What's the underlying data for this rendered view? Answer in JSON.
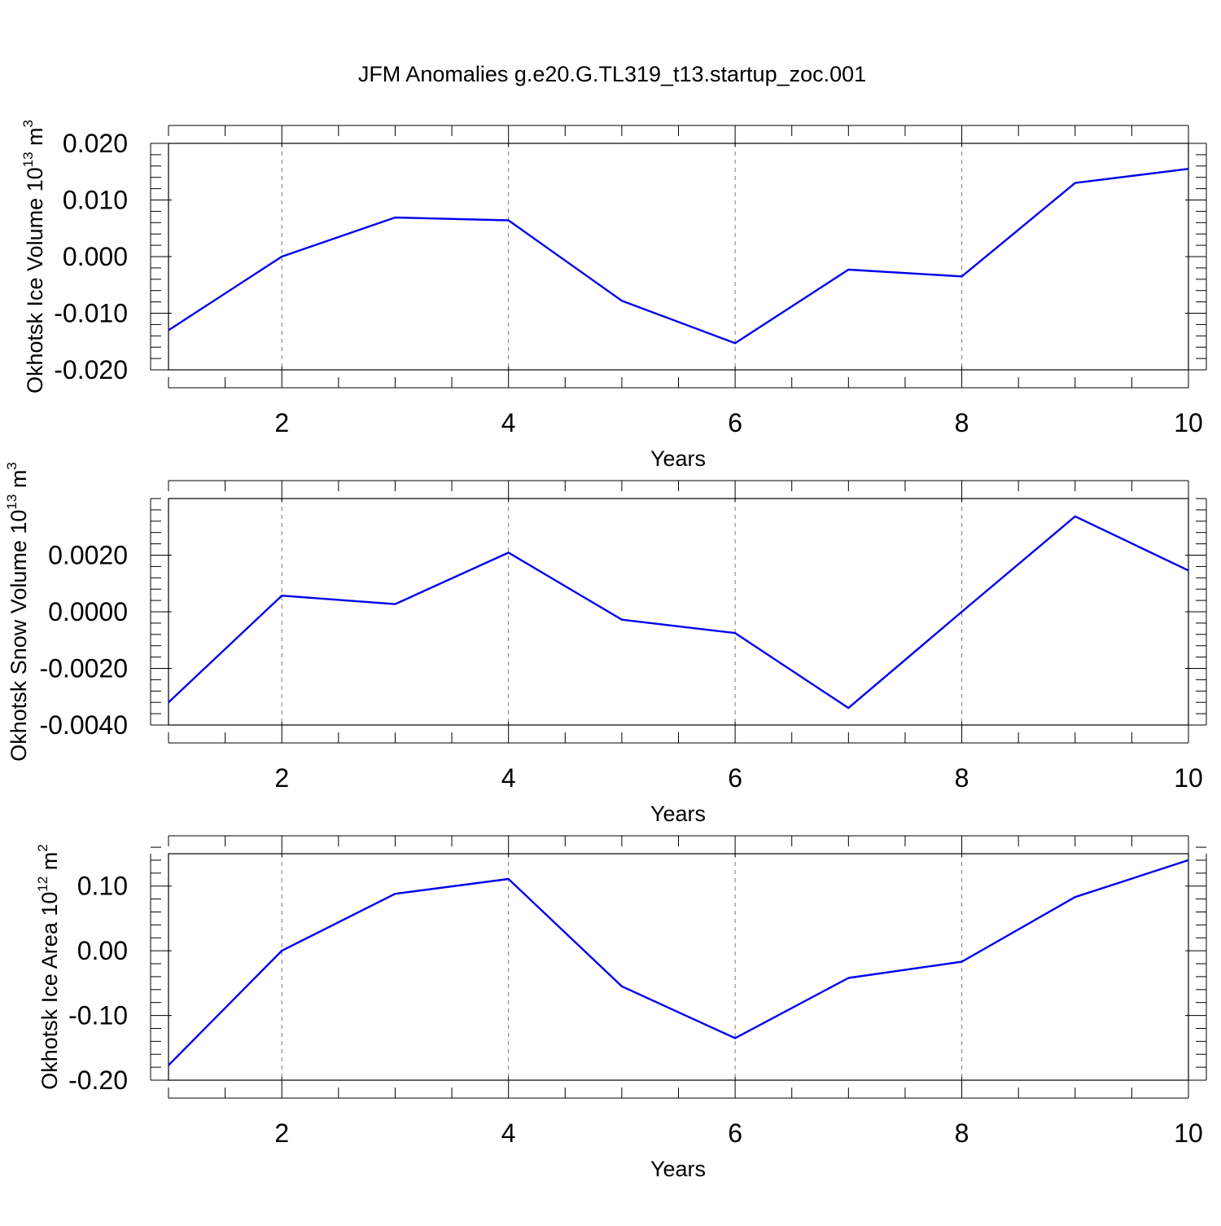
{
  "title": "JFM Anomalies g.e20.G.TL319_t13.startup_zoc.001",
  "colors": {
    "line": "#0000ee",
    "axis": "#000000",
    "grid": "#777777",
    "background": "#ffffff"
  },
  "chart_data": [
    {
      "type": "line",
      "title": "",
      "xlabel": "Years",
      "ylabel": {
        "text": "Okhotsk Ice Volume 10",
        "exponent": "13",
        "unit": "m",
        "unit_exponent": "3"
      },
      "xlim": [
        1,
        10
      ],
      "ylim": [
        -0.02,
        0.02
      ],
      "xticks": [
        2,
        4,
        6,
        8,
        10
      ],
      "xtick_labels": [
        "2",
        "4",
        "6",
        "8",
        "10"
      ],
      "yticks": [
        -0.02,
        -0.01,
        0.0,
        0.01,
        0.02
      ],
      "ytick_labels": [
        "-0.020",
        "-0.010",
        "0.000",
        "0.010",
        "0.020"
      ],
      "yminor_step": 0.002,
      "grid": "x-dashed",
      "x": [
        1,
        2,
        3,
        4,
        5,
        6,
        7,
        8,
        9,
        10
      ],
      "series": [
        {
          "name": "Okhotsk Ice Volume",
          "values": [
            -0.013,
            0.0,
            0.0069,
            0.0064,
            -0.0078,
            -0.0153,
            -0.0023,
            -0.0035,
            0.013,
            0.0155
          ]
        }
      ]
    },
    {
      "type": "line",
      "title": "",
      "xlabel": "Years",
      "ylabel": {
        "text": "Okhotsk Snow Volume 10",
        "exponent": "13",
        "unit": "m",
        "unit_exponent": "3"
      },
      "xlim": [
        1,
        10
      ],
      "ylim": [
        -0.004,
        0.004
      ],
      "xticks": [
        2,
        4,
        6,
        8,
        10
      ],
      "xtick_labels": [
        "2",
        "4",
        "6",
        "8",
        "10"
      ],
      "yticks": [
        -0.004,
        -0.002,
        0.0,
        0.002
      ],
      "ytick_labels": [
        "-0.0040",
        "-0.0020",
        "0.0000",
        "0.0020"
      ],
      "yminor_step": 0.0004,
      "grid": "x-dashed",
      "x": [
        1,
        2,
        3,
        4,
        5,
        6,
        7,
        8,
        9,
        10
      ],
      "series": [
        {
          "name": "Okhotsk Snow Volume",
          "values": [
            -0.0032,
            0.00057,
            0.00027,
            0.00209,
            -0.00028,
            -0.00075,
            -0.0034,
            0.0,
            0.00337,
            0.00146
          ]
        }
      ]
    },
    {
      "type": "line",
      "title": "",
      "xlabel": "Years",
      "ylabel": {
        "text": "Okhotsk Ice Area 10",
        "exponent": "12",
        "unit": "m",
        "unit_exponent": "2"
      },
      "xlim": [
        1,
        10
      ],
      "ylim": [
        -0.2,
        0.15
      ],
      "xticks": [
        2,
        4,
        6,
        8,
        10
      ],
      "xtick_labels": [
        "2",
        "4",
        "6",
        "8",
        "10"
      ],
      "yticks": [
        -0.2,
        -0.1,
        0.0,
        0.1
      ],
      "ytick_labels": [
        "-0.20",
        "-0.10",
        "0.00",
        "0.10"
      ],
      "yminor_step": 0.02,
      "grid": "x-dashed",
      "x": [
        1,
        2,
        3,
        4,
        5,
        6,
        7,
        8,
        9,
        10
      ],
      "series": [
        {
          "name": "Okhotsk Ice Area",
          "values": [
            -0.177,
            0.0,
            0.088,
            0.111,
            -0.055,
            -0.135,
            -0.042,
            -0.017,
            0.083,
            0.14
          ]
        }
      ]
    }
  ]
}
